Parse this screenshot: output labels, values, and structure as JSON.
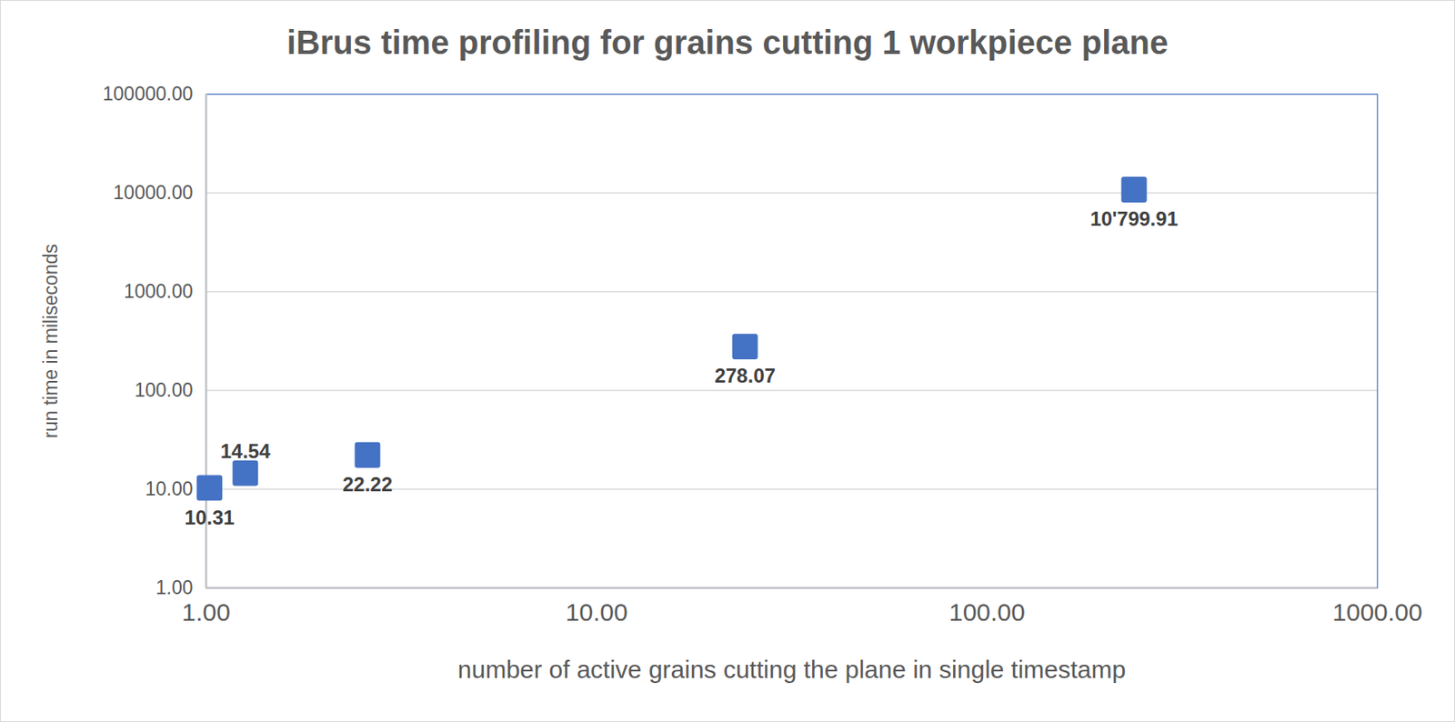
{
  "chart_data": {
    "type": "scatter",
    "title": "iBrus time profiling for grains cutting 1 workpiece plane",
    "x_label": "number of active grains cutting the plane in single timestamp",
    "y_label": "run time in miliseconds",
    "x": [
      1.02,
      1.26,
      2.59,
      24.0,
      238.0
    ],
    "values": [
      10.31,
      14.54,
      22.22,
      278.07,
      10799.91
    ],
    "value_labels": [
      "10.31",
      "14.54",
      "22.22",
      "278.07",
      "10'799.91"
    ],
    "color": "#4472c4",
    "marker": "square",
    "log": true,
    "grid": true,
    "data_labels": true,
    "xlim": [
      1,
      1000
    ],
    "ylim": [
      1,
      100000
    ],
    "xticks": [
      {
        "value": 1,
        "label": "1.00"
      },
      {
        "value": 10,
        "label": "10.00"
      },
      {
        "value": 100,
        "label": "100.00"
      },
      {
        "value": 1000,
        "label": "1000.00"
      }
    ],
    "yticks": [
      {
        "value": 1,
        "label": "1.00"
      },
      {
        "value": 10,
        "label": "10.00"
      },
      {
        "value": 100,
        "label": "100.00"
      },
      {
        "value": 1000,
        "label": "1000.00"
      },
      {
        "value": 10000,
        "label": "10000.00"
      },
      {
        "value": 100000,
        "label": "100000.00"
      }
    ]
  }
}
